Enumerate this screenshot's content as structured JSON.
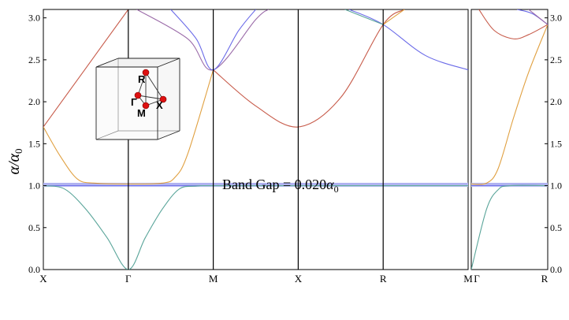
{
  "chart_data": {
    "type": "line",
    "ylabel_base": "α/α",
    "ylabel_sub": "0",
    "ylim": [
      0,
      3.1
    ],
    "yticks": [
      "0.0",
      "0.5",
      "1.0",
      "1.5",
      "2.0",
      "2.5",
      "3.0"
    ],
    "grid": false,
    "annotation": {
      "prefix": "Band Gap = 0.020",
      "symbol": "α",
      "sub": "0",
      "value": 0.02
    },
    "band_gap": {
      "low": 1.0,
      "high": 1.02
    },
    "main_panel": {
      "path_labels": [
        "X",
        "Γ",
        "M",
        "X",
        "R",
        "M"
      ],
      "series": [
        {
          "color": "#5aa59a",
          "points": [
            [
              0,
              1.0
            ],
            [
              0.25,
              0.96
            ],
            [
              0.5,
              0.72
            ],
            [
              0.75,
              0.38
            ],
            [
              1,
              0.0
            ],
            [
              1.2,
              0.38
            ],
            [
              1.4,
              0.72
            ],
            [
              1.6,
              0.96
            ],
            [
              1.8,
              0.995
            ],
            [
              2,
              1.0
            ],
            [
              3,
              1.0
            ],
            [
              4,
              1.0
            ],
            [
              5,
              1.0
            ]
          ]
        },
        {
          "color": "#e0a040",
          "points": [
            [
              0,
              1.7
            ],
            [
              0.2,
              1.35
            ],
            [
              0.4,
              1.08
            ],
            [
              0.6,
              1.03
            ],
            [
              1,
              1.02
            ],
            [
              1.4,
              1.03
            ],
            [
              1.55,
              1.1
            ],
            [
              1.7,
              1.38
            ],
            [
              2,
              2.38
            ]
          ]
        },
        {
          "color": "#c75b4a",
          "points": [
            [
              0,
              1.7
            ],
            [
              1,
              3.1
            ]
          ]
        },
        {
          "color": "#c75b4a",
          "points": [
            [
              2,
              2.38
            ],
            [
              2.5,
              1.95
            ],
            [
              3,
              1.7
            ],
            [
              3.5,
              2.05
            ],
            [
              4,
              2.92
            ],
            [
              4.25,
              3.1
            ]
          ]
        },
        {
          "color": "#9a6aa8",
          "points": [
            [
              1.1,
              3.1
            ],
            [
              1.7,
              2.75
            ],
            [
              2,
              2.38
            ],
            [
              2.5,
              2.98
            ],
            [
              2.65,
              3.1
            ]
          ]
        },
        {
          "color": "#6a6ae8",
          "points": [
            [
              1.5,
              3.1
            ],
            [
              1.8,
              2.75
            ],
            [
              2,
              2.38
            ],
            [
              2.3,
              2.85
            ],
            [
              2.5,
              3.1
            ]
          ]
        },
        {
          "color": "#6a6ae8",
          "points": [
            [
              3.6,
              3.1
            ],
            [
              4,
              2.92
            ],
            [
              4.5,
              2.55
            ],
            [
              5,
              2.38
            ]
          ]
        },
        {
          "color": "#5aa59a",
          "points": [
            [
              3.55,
              3.1
            ],
            [
              4,
              2.92
            ]
          ]
        },
        {
          "color": "#e0a040",
          "points": [
            [
              4,
              2.92
            ],
            [
              4.25,
              3.1
            ]
          ]
        }
      ]
    },
    "side_panel": {
      "path_labels": [
        "Γ",
        "R"
      ],
      "series": [
        {
          "color": "#5aa59a",
          "points": [
            [
              0,
              0.0
            ],
            [
              0.2,
              0.72
            ],
            [
              0.35,
              0.95
            ],
            [
              0.5,
              1.0
            ],
            [
              1,
              1.0
            ]
          ]
        },
        {
          "color": "#e0a040",
          "points": [
            [
              0,
              1.02
            ],
            [
              0.2,
              1.03
            ],
            [
              0.35,
              1.2
            ],
            [
              0.55,
              1.8
            ],
            [
              0.75,
              2.35
            ],
            [
              1,
              2.92
            ]
          ]
        },
        {
          "color": "#c75b4a",
          "points": [
            [
              0.1,
              3.1
            ],
            [
              0.3,
              2.85
            ],
            [
              0.55,
              2.75
            ],
            [
              0.75,
              2.8
            ],
            [
              1,
              2.92
            ]
          ]
        },
        {
          "color": "#6a6ae8",
          "points": [
            [
              0.6,
              3.1
            ],
            [
              0.8,
              3.05
            ],
            [
              1,
              2.92
            ]
          ]
        },
        {
          "color": "#9a6aa8",
          "points": [
            [
              0.75,
              3.1
            ],
            [
              1,
              2.92
            ]
          ]
        }
      ]
    },
    "inset": {
      "labels": [
        "R",
        "Γ",
        "X",
        "M"
      ],
      "point_color": "#dd1111"
    }
  }
}
